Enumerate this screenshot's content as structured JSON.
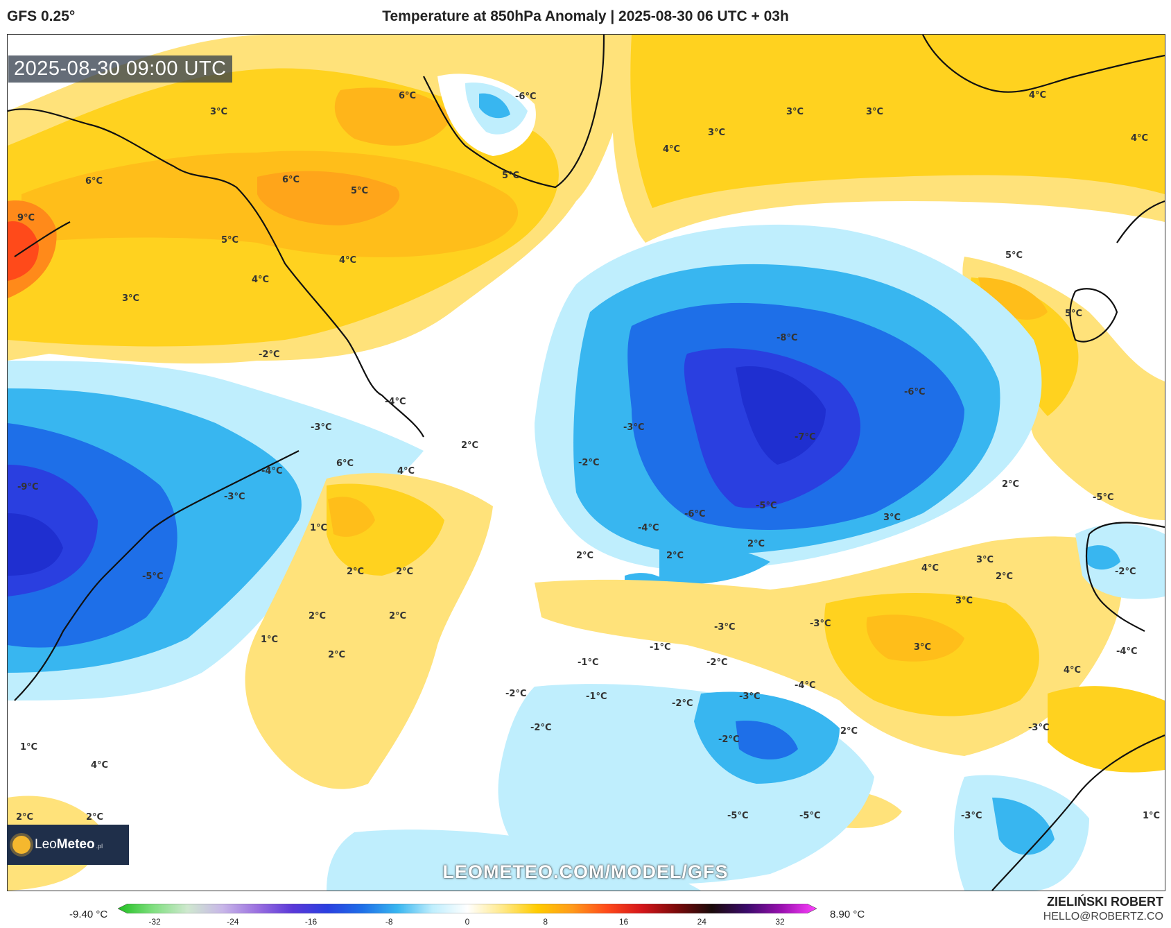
{
  "header": {
    "model": "GFS 0.25°",
    "title": "Temperature at 850hPa Anomaly | 2025-08-30 06 UTC + 03h"
  },
  "valid_time": "2025-08-30 09:00 UTC",
  "watermark": "LEOMETEO.COM/MODEL/GFS",
  "logo": {
    "name_light": "Leo",
    "name_bold": "Meteo",
    "suffix": ".pl"
  },
  "colorbar": {
    "min_label": "-9.40 °C",
    "max_label": "8.90 °C",
    "ticks": [
      "-32",
      "-24",
      "-16",
      "-8",
      "0",
      "8",
      "16",
      "24",
      "32"
    ],
    "colors": [
      "#1fbf1f",
      "#7fdf7f",
      "#cfe8cf",
      "#c8b6e8",
      "#9a6fe0",
      "#5a38d8",
      "#2a3fe0",
      "#1e6fe8",
      "#38b6f0",
      "#bfeefd",
      "#ffffff",
      "#ffe98a",
      "#ffcc00",
      "#ff9a1a",
      "#ff4a1a",
      "#d4151a",
      "#7a0a0a",
      "#1a0a0a",
      "#3a0a6a",
      "#9a10b0",
      "#ff40ff"
    ]
  },
  "credit": {
    "name": "ZIELIŃSKI ROBERT",
    "email": "HELLO@ROBERTZ.CO"
  },
  "map_labels": [
    "3°C",
    "6°C",
    "-6°C",
    "3°C",
    "3°C",
    "3°C",
    "4°C",
    "4°C",
    "4°C",
    "6°C",
    "6°C",
    "5°C",
    "5°C",
    "9°C",
    "5°C",
    "4°C",
    "4°C",
    "3°C",
    "5°C",
    "5°C",
    "-2°C",
    "-8°C",
    "-6°C",
    "-4°C",
    "-3°C",
    "-3°C",
    "2°C",
    "-7°C",
    "-4°C",
    "6°C",
    "4°C",
    "-2°C",
    "-3°C",
    "2°C",
    "-9°C",
    "-5°C",
    "-6°C",
    "-5°C",
    "-4°C",
    "1°C",
    "3°C",
    "2°C",
    "2°C",
    "2°C",
    "2°C",
    "-5°C",
    "2°C",
    "2°C",
    "4°C",
    "3°C",
    "-2°C",
    "3°C",
    "2°C",
    "2°C",
    "1°C",
    "-3°C",
    "-3°C",
    "-1°C",
    "3°C",
    "2°C",
    "-1°C",
    "-2°C",
    "-4°C",
    "4°C",
    "-4°C",
    "-2°C",
    "-1°C",
    "-2°C",
    "-3°C",
    "2°C",
    "-2°C",
    "-2°C",
    "-3°C",
    "1°C",
    "4°C",
    "2°C",
    "2°C",
    "-5°C",
    "-5°C",
    "-3°C",
    "1°C"
  ]
}
